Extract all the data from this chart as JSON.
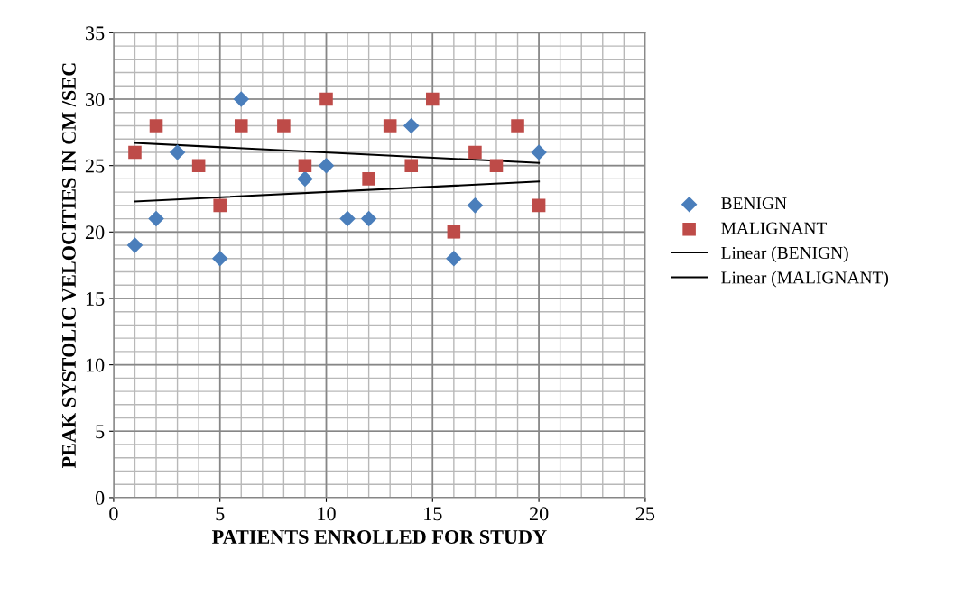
{
  "chart_data": {
    "type": "scatter",
    "xlabel": "PATIENTS ENROLLED FOR STUDY",
    "ylabel": "PEAK SYSTOLIC VELOCITIES IN CM /SEC",
    "xlim": [
      0,
      25
    ],
    "xticks": [
      0,
      5,
      10,
      15,
      20,
      25
    ],
    "ylim": [
      0,
      35
    ],
    "yticks": [
      0,
      5,
      10,
      15,
      20,
      25,
      30,
      35
    ],
    "grid": true,
    "legend": "right",
    "series": [
      {
        "name": "BENIGN",
        "marker": "diamond",
        "color": "#4a7ebb",
        "x": [
          1,
          2,
          3,
          5,
          6,
          9,
          10,
          11,
          12,
          14,
          16,
          17,
          20
        ],
        "values": [
          19,
          21,
          26,
          18,
          30,
          24,
          25,
          21,
          21,
          28,
          18,
          22,
          26
        ]
      },
      {
        "name": "MALIGNANT",
        "marker": "square",
        "color": "#be4b48",
        "x": [
          1,
          2,
          4,
          5,
          6,
          8,
          9,
          10,
          12,
          13,
          14,
          15,
          16,
          17,
          18,
          19,
          20
        ],
        "values": [
          26,
          28,
          25,
          22,
          28,
          28,
          25,
          30,
          24,
          28,
          25,
          30,
          20,
          26,
          25,
          28,
          22
        ]
      },
      {
        "name": "Linear (BENIGN)",
        "type": "line",
        "marker": "none",
        "color": "#000000",
        "x": [
          1,
          20
        ],
        "values": [
          22.3,
          23.8
        ]
      },
      {
        "name": "Linear (MALIGNANT)",
        "type": "line",
        "marker": "none",
        "color": "#000000",
        "x": [
          1,
          20
        ],
        "values": [
          26.7,
          25.2
        ]
      }
    ]
  }
}
